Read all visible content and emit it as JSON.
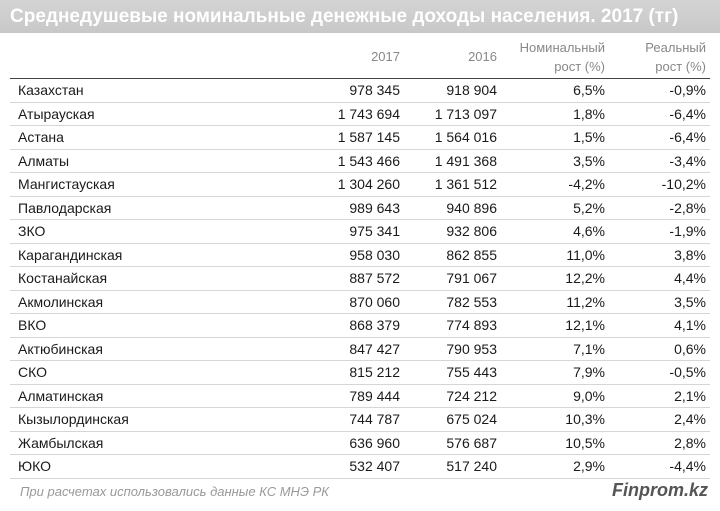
{
  "title": "Среднедушевые номинальные денежные доходы населения. 2017 (тг)",
  "header": {
    "col2017": "2017",
    "col2016": "2016",
    "nominal": [
      "Номинальный",
      "рост (%)"
    ],
    "real": [
      "Реальный",
      "рост (%)"
    ]
  },
  "table": {
    "rows": [
      [
        "Казахстан",
        "978 345",
        "918 904",
        "6,5%",
        "-0,9%"
      ],
      [
        "Атырауская",
        "1 743 694",
        "1 713 097",
        "1,8%",
        "-6,4%"
      ],
      [
        "Астана",
        "1 587 145",
        "1 564 016",
        "1,5%",
        "-6,4%"
      ],
      [
        "Алматы",
        "1 543 466",
        "1 491 368",
        "3,5%",
        "-3,4%"
      ],
      [
        "Мангистауская",
        "1 304 260",
        "1 361 512",
        "-4,2%",
        "-10,2%"
      ],
      [
        "Павлодарская",
        "989 643",
        "940 896",
        "5,2%",
        "-2,8%"
      ],
      [
        "ЗКО",
        "975 341",
        "932 806",
        "4,6%",
        "-1,9%"
      ],
      [
        "Карагандинская",
        "958 030",
        "862 855",
        "11,0%",
        "3,8%"
      ],
      [
        "Костанайская",
        "887 572",
        "791 067",
        "12,2%",
        "4,4%"
      ],
      [
        "Акмолинская",
        "870 060",
        "782 553",
        "11,2%",
        "3,5%"
      ],
      [
        "ВКО",
        "868 379",
        "774 893",
        "12,1%",
        "4,1%"
      ],
      [
        "Актюбинская",
        "847 427",
        "790 953",
        "7,1%",
        "0,6%"
      ],
      [
        "СКО",
        "815 212",
        "755 443",
        "7,9%",
        "-0,5%"
      ],
      [
        "Алматинская",
        "789 444",
        "724 212",
        "9,0%",
        "2,1%"
      ],
      [
        "Кызылординская",
        "744 787",
        "675 024",
        "10,3%",
        "2,4%"
      ],
      [
        "Жамбылская",
        "636 960",
        "576 687",
        "10,5%",
        "2,8%"
      ],
      [
        "ЮКО",
        "532 407",
        "517 240",
        "2,9%",
        "-4,4%"
      ]
    ]
  },
  "footer": {
    "note": "При расчетах использовались данные КС МНЭ РК",
    "brand": "Finprom.kz"
  }
}
